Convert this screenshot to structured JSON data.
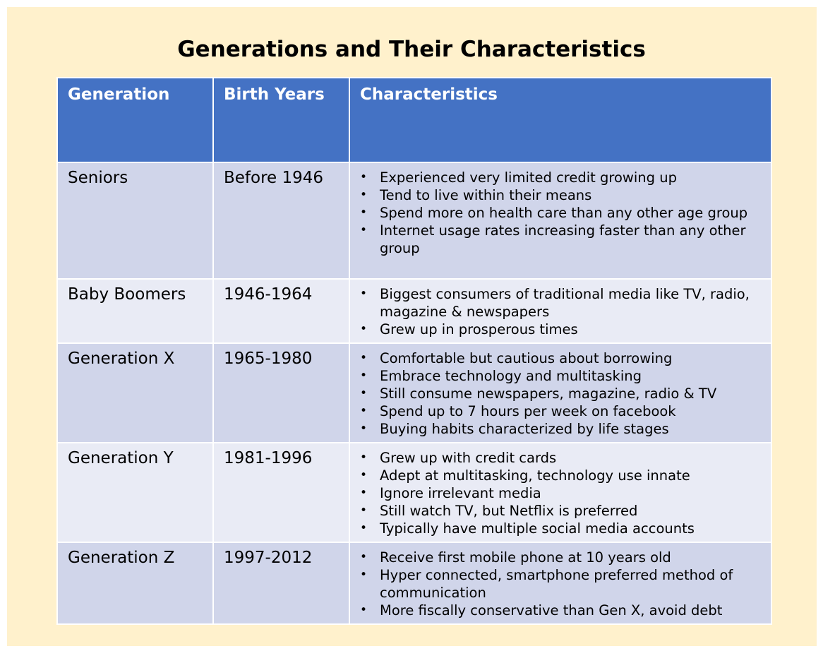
{
  "title": "Generations and Their Characteristics",
  "table": {
    "headers": [
      "Generation",
      "Birth Years",
      "Characteristics"
    ],
    "rows": [
      {
        "generation": "Seniors",
        "birth_years": "Before 1946",
        "characteristics": [
          "Experienced very limited credit growing up",
          "Tend to live within their means",
          "Spend more on health care than any other age group",
          "Internet usage rates increasing faster than any other group"
        ]
      },
      {
        "generation": "Baby Boomers",
        "birth_years": "1946-1964",
        "characteristics": [
          "Biggest consumers of traditional media like TV, radio, magazine & newspapers",
          "Grew up in prosperous times"
        ]
      },
      {
        "generation": "Generation X",
        "birth_years": "1965-1980",
        "characteristics": [
          "Comfortable but cautious about borrowing",
          "Embrace technology and multitasking",
          "Still consume newspapers, magazine, radio & TV",
          "Spend up to 7 hours per week on facebook",
          "Buying habits characterized by life stages"
        ]
      },
      {
        "generation": "Generation Y",
        "birth_years": "1981-1996",
        "characteristics": [
          "Grew up with credit cards",
          "Adept at multitasking, technology use innate",
          "Ignore irrelevant media",
          "Still watch TV, but Netflix is preferred",
          "Typically have multiple social media accounts"
        ]
      },
      {
        "generation": "Generation Z",
        "birth_years": "1997-2012",
        "characteristics": [
          "Receive first mobile phone at 10 years old",
          "Hyper connected, smartphone preferred method of communication",
          "More fiscally conservative than Gen X, avoid debt"
        ]
      }
    ]
  },
  "colors": {
    "background": "#fff1cc",
    "header": "#4472c4",
    "row_odd": "#d0d5ea",
    "row_even": "#e9ebf5"
  }
}
